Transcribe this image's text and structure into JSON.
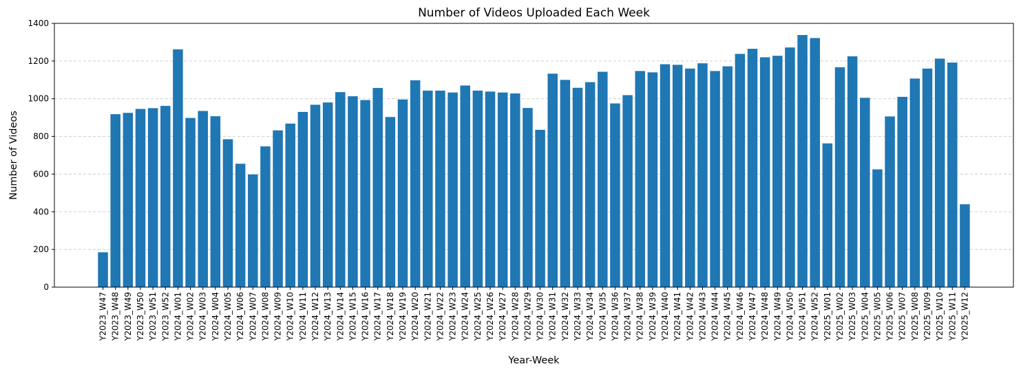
{
  "chart_data": {
    "type": "bar",
    "title": "Number of Videos Uploaded Each Week",
    "xlabel": "Year-Week",
    "ylabel": "Number of Videos",
    "ylim": [
      0,
      1400
    ],
    "yticks": [
      0,
      200,
      400,
      600,
      800,
      1000,
      1200,
      1400
    ],
    "grid": "y dashed",
    "bar_color": "#1f77b4",
    "grid_color": "#c8c8c8",
    "categories": [
      "Y2023_W47",
      "Y2023_W48",
      "Y2023_W49",
      "Y2023_W50",
      "Y2023_W51",
      "Y2023_W52",
      "Y2024_W01",
      "Y2024_W02",
      "Y2024_W03",
      "Y2024_W04",
      "Y2024_W05",
      "Y2024_W06",
      "Y2024_W07",
      "Y2024_W08",
      "Y2024_W09",
      "Y2024_W10",
      "Y2024_W11",
      "Y2024_W12",
      "Y2024_W13",
      "Y2024_W14",
      "Y2024_W15",
      "Y2024_W16",
      "Y2024_W17",
      "Y2024_W18",
      "Y2024_W19",
      "Y2024_W20",
      "Y2024_W21",
      "Y2024_W22",
      "Y2024_W23",
      "Y2024_W24",
      "Y2024_W25",
      "Y2024_W26",
      "Y2024_W27",
      "Y2024_W28",
      "Y2024_W29",
      "Y2024_W30",
      "Y2024_W31",
      "Y2024_W32",
      "Y2024_W33",
      "Y2024_W34",
      "Y2024_W35",
      "Y2024_W36",
      "Y2024_W37",
      "Y2024_W38",
      "Y2024_W39",
      "Y2024_W40",
      "Y2024_W41",
      "Y2024_W42",
      "Y2024_W43",
      "Y2024_W44",
      "Y2024_W45",
      "Y2024_W46",
      "Y2024_W47",
      "Y2024_W48",
      "Y2024_W49",
      "Y2024_W50",
      "Y2024_W51",
      "Y2024_W52",
      "Y2025_W01",
      "Y2025_W02",
      "Y2025_W03",
      "Y2025_W04",
      "Y2025_W05",
      "Y2025_W06",
      "Y2025_W07",
      "Y2025_W08",
      "Y2025_W09",
      "Y2025_W10",
      "Y2025_W11",
      "Y2025_W12"
    ],
    "values": [
      185,
      918,
      925,
      946,
      950,
      962,
      1262,
      898,
      935,
      907,
      785,
      655,
      598,
      747,
      832,
      868,
      930,
      968,
      980,
      1035,
      1013,
      993,
      1057,
      903,
      996,
      1098,
      1043,
      1043,
      1033,
      1070,
      1043,
      1038,
      1033,
      1028,
      951,
      835,
      1133,
      1100,
      1058,
      1088,
      1143,
      975,
      1019,
      1147,
      1140,
      1183,
      1180,
      1160,
      1188,
      1147,
      1172,
      1238,
      1265,
      1220,
      1228,
      1272,
      1338,
      1322,
      763,
      1167,
      1225,
      1005,
      625,
      906,
      1010,
      1107,
      1160,
      1213,
      1192,
      440
    ]
  }
}
